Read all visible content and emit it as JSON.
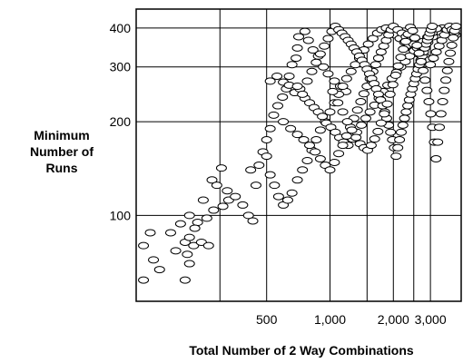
{
  "chart_data": {
    "type": "scatter",
    "title": "",
    "xlabel": "Total Number of 2 Way Combinations",
    "ylabel_lines": [
      "Minimum",
      "Number of",
      "Runs"
    ],
    "x_scale": "log",
    "y_scale": "log",
    "xlim": [
      120,
      4200
    ],
    "ylim": [
      53,
      460
    ],
    "grid": true,
    "legend": "none",
    "colors": {
      "marker_fill": "#ffffff",
      "marker_stroke": "#000000",
      "grid": "#000000"
    },
    "x_ticks": [
      {
        "value": 500,
        "label": "500"
      },
      {
        "value": 1000,
        "label": "1,000"
      },
      {
        "value": 2000,
        "label": "2,000"
      },
      {
        "value": 3000,
        "label": "3,000"
      }
    ],
    "y_ticks": [
      {
        "value": 100,
        "label": "100"
      },
      {
        "value": 200,
        "label": "200"
      },
      {
        "value": 300,
        "label": "300"
      },
      {
        "value": 400,
        "label": "400"
      }
    ],
    "x_extra_gridlines": [
      300,
      1500,
      2500
    ],
    "points": [
      [
        130,
        62
      ],
      [
        205,
        62
      ],
      [
        130,
        80
      ],
      [
        145,
        72
      ],
      [
        155,
        67
      ],
      [
        185,
        77
      ],
      [
        210,
        75
      ],
      [
        215,
        70
      ],
      [
        140,
        88
      ],
      [
        175,
        88
      ],
      [
        205,
        82
      ],
      [
        225,
        80
      ],
      [
        245,
        82
      ],
      [
        265,
        80
      ],
      [
        195,
        94
      ],
      [
        215,
        100
      ],
      [
        235,
        95
      ],
      [
        260,
        98
      ],
      [
        280,
        104
      ],
      [
        310,
        107
      ],
      [
        330,
        112
      ],
      [
        355,
        115
      ],
      [
        385,
        108
      ],
      [
        410,
        100
      ],
      [
        430,
        96
      ],
      [
        250,
        112
      ],
      [
        275,
        130
      ],
      [
        305,
        142
      ],
      [
        325,
        120
      ],
      [
        215,
        85
      ],
      [
        228,
        91
      ],
      [
        290,
        125
      ],
      [
        445,
        125
      ],
      [
        420,
        140
      ],
      [
        460,
        145
      ],
      [
        480,
        160
      ],
      [
        500,
        175
      ],
      [
        520,
        190
      ],
      [
        540,
        210
      ],
      [
        565,
        225
      ],
      [
        595,
        240
      ],
      [
        620,
        255
      ],
      [
        640,
        280
      ],
      [
        660,
        305
      ],
      [
        690,
        320
      ],
      [
        700,
        345
      ],
      [
        710,
        375
      ],
      [
        760,
        390
      ],
      [
        790,
        365
      ],
      [
        830,
        340
      ],
      [
        880,
        325
      ],
      [
        930,
        300
      ],
      [
        980,
        285
      ],
      [
        1050,
        270
      ],
      [
        1120,
        260
      ],
      [
        1190,
        250
      ],
      [
        500,
        155
      ],
      [
        520,
        135
      ],
      [
        545,
        125
      ],
      [
        570,
        115
      ],
      [
        600,
        108
      ],
      [
        630,
        112
      ],
      [
        660,
        118
      ],
      [
        700,
        130
      ],
      [
        740,
        140
      ],
      [
        780,
        150
      ],
      [
        820,
        162
      ],
      [
        860,
        175
      ],
      [
        900,
        188
      ],
      [
        950,
        200
      ],
      [
        1000,
        215
      ],
      [
        1050,
        230
      ],
      [
        1100,
        245
      ],
      [
        1150,
        260
      ],
      [
        1200,
        275
      ],
      [
        1260,
        290
      ],
      [
        1320,
        305
      ],
      [
        1380,
        320
      ],
      [
        1450,
        340
      ],
      [
        1520,
        355
      ],
      [
        1600,
        370
      ],
      [
        1680,
        385
      ],
      [
        1760,
        395
      ],
      [
        1850,
        400
      ],
      [
        1940,
        390
      ],
      [
        2040,
        380
      ],
      [
        2150,
        370
      ],
      [
        2260,
        360
      ],
      [
        2380,
        350
      ],
      [
        2500,
        340
      ],
      [
        2630,
        330
      ],
      [
        2770,
        345
      ],
      [
        2920,
        360
      ],
      [
        3080,
        375
      ],
      [
        3250,
        390
      ],
      [
        3420,
        400
      ],
      [
        3600,
        395
      ],
      [
        3780,
        385
      ],
      [
        3950,
        380
      ],
      [
        520,
        270
      ],
      [
        560,
        280
      ],
      [
        600,
        268
      ],
      [
        640,
        262
      ],
      [
        680,
        248
      ],
      [
        720,
        255
      ],
      [
        760,
        238
      ],
      [
        800,
        230
      ],
      [
        840,
        222
      ],
      [
        880,
        215
      ],
      [
        920,
        208
      ],
      [
        960,
        198
      ],
      [
        1010,
        192
      ],
      [
        1060,
        185
      ],
      [
        1110,
        178
      ],
      [
        1160,
        172
      ],
      [
        1220,
        168
      ],
      [
        1280,
        176
      ],
      [
        1340,
        185
      ],
      [
        1410,
        195
      ],
      [
        1480,
        205
      ],
      [
        1550,
        215
      ],
      [
        1630,
        226
      ],
      [
        1710,
        238
      ],
      [
        1790,
        250
      ],
      [
        1880,
        262
      ],
      [
        1970,
        275
      ],
      [
        2070,
        288
      ],
      [
        2170,
        300
      ],
      [
        2280,
        312
      ],
      [
        2390,
        325
      ],
      [
        2510,
        338
      ],
      [
        2640,
        350
      ],
      [
        2770,
        362
      ],
      [
        2910,
        374
      ],
      [
        3060,
        386
      ],
      [
        3210,
        398
      ],
      [
        600,
        200
      ],
      [
        650,
        190
      ],
      [
        700,
        182
      ],
      [
        750,
        175
      ],
      [
        800,
        168
      ],
      [
        850,
        160
      ],
      [
        900,
        152
      ],
      [
        950,
        145
      ],
      [
        1000,
        140
      ],
      [
        1050,
        148
      ],
      [
        1100,
        158
      ],
      [
        1150,
        168
      ],
      [
        1200,
        180
      ],
      [
        1250,
        192
      ],
      [
        1300,
        205
      ],
      [
        1350,
        218
      ],
      [
        1400,
        232
      ],
      [
        1450,
        246
      ],
      [
        1500,
        260
      ],
      [
        1550,
        275
      ],
      [
        1600,
        290
      ],
      [
        1650,
        305
      ],
      [
        1700,
        320
      ],
      [
        1750,
        335
      ],
      [
        1800,
        350
      ],
      [
        1850,
        365
      ],
      [
        1900,
        380
      ],
      [
        1950,
        395
      ],
      [
        2000,
        405
      ],
      [
        2100,
        395
      ],
      [
        2200,
        385
      ],
      [
        2300,
        375
      ],
      [
        2400,
        365
      ],
      [
        2500,
        355
      ],
      [
        2600,
        345
      ],
      [
        2700,
        335
      ],
      [
        2800,
        325
      ],
      [
        2900,
        315
      ],
      [
        3000,
        305
      ],
      [
        3100,
        320
      ],
      [
        3200,
        335
      ],
      [
        3300,
        350
      ],
      [
        3400,
        365
      ],
      [
        3500,
        380
      ],
      [
        3600,
        395
      ],
      [
        3700,
        405
      ],
      [
        3800,
        395
      ],
      [
        3900,
        385
      ],
      [
        700,
        260
      ],
      [
        740,
        245
      ],
      [
        780,
        270
      ],
      [
        820,
        290
      ],
      [
        860,
        310
      ],
      [
        900,
        330
      ],
      [
        940,
        350
      ],
      [
        980,
        370
      ],
      [
        1020,
        390
      ],
      [
        1060,
        405
      ],
      [
        1100,
        395
      ],
      [
        1140,
        385
      ],
      [
        1180,
        375
      ],
      [
        1220,
        365
      ],
      [
        1260,
        355
      ],
      [
        1300,
        345
      ],
      [
        1340,
        335
      ],
      [
        1380,
        325
      ],
      [
        1420,
        315
      ],
      [
        1460,
        305
      ],
      [
        1500,
        295
      ],
      [
        1540,
        285
      ],
      [
        1580,
        275
      ],
      [
        1620,
        265
      ],
      [
        1660,
        255
      ],
      [
        1700,
        245
      ],
      [
        1740,
        235
      ],
      [
        1780,
        225
      ],
      [
        1820,
        215
      ],
      [
        1860,
        205
      ],
      [
        1900,
        195
      ],
      [
        1940,
        185
      ],
      [
        1980,
        175
      ],
      [
        2020,
        165
      ],
      [
        2060,
        155
      ],
      [
        2100,
        165
      ],
      [
        2140,
        175
      ],
      [
        2180,
        185
      ],
      [
        2220,
        195
      ],
      [
        2260,
        205
      ],
      [
        2300,
        215
      ],
      [
        2340,
        225
      ],
      [
        2380,
        235
      ],
      [
        2420,
        245
      ],
      [
        2460,
        255
      ],
      [
        2500,
        265
      ],
      [
        2540,
        275
      ],
      [
        2580,
        285
      ],
      [
        2620,
        295
      ],
      [
        2660,
        305
      ],
      [
        2700,
        315
      ],
      [
        2740,
        325
      ],
      [
        2780,
        335
      ],
      [
        2820,
        345
      ],
      [
        2860,
        355
      ],
      [
        2900,
        365
      ],
      [
        2940,
        375
      ],
      [
        2980,
        385
      ],
      [
        3020,
        395
      ],
      [
        3060,
        405
      ],
      [
        1030,
        250
      ],
      [
        1090,
        230
      ],
      [
        1150,
        215
      ],
      [
        1210,
        200
      ],
      [
        1270,
        188
      ],
      [
        1330,
        178
      ],
      [
        1390,
        170
      ],
      [
        1450,
        165
      ],
      [
        1510,
        162
      ],
      [
        1570,
        168
      ],
      [
        1630,
        176
      ],
      [
        1690,
        186
      ],
      [
        1750,
        198
      ],
      [
        1810,
        212
      ],
      [
        1870,
        228
      ],
      [
        1930,
        245
      ],
      [
        1990,
        263
      ],
      [
        2050,
        282
      ],
      [
        2110,
        302
      ],
      [
        2170,
        322
      ],
      [
        2230,
        342
      ],
      [
        2290,
        362
      ],
      [
        2350,
        382
      ],
      [
        2410,
        402
      ],
      [
        2470,
        392
      ],
      [
        2530,
        372
      ],
      [
        2590,
        352
      ],
      [
        2650,
        332
      ],
      [
        2710,
        312
      ],
      [
        2770,
        292
      ],
      [
        2830,
        272
      ],
      [
        2890,
        252
      ],
      [
        2950,
        232
      ],
      [
        3010,
        212
      ],
      [
        3070,
        192
      ],
      [
        3130,
        172
      ],
      [
        3190,
        152
      ],
      [
        3250,
        172
      ],
      [
        3310,
        192
      ],
      [
        3370,
        212
      ],
      [
        3430,
        232
      ],
      [
        3490,
        252
      ],
      [
        3550,
        272
      ],
      [
        3610,
        292
      ],
      [
        3670,
        312
      ],
      [
        3730,
        332
      ],
      [
        3790,
        352
      ],
      [
        3850,
        372
      ],
      [
        3910,
        392
      ],
      [
        3970,
        405
      ]
    ]
  }
}
